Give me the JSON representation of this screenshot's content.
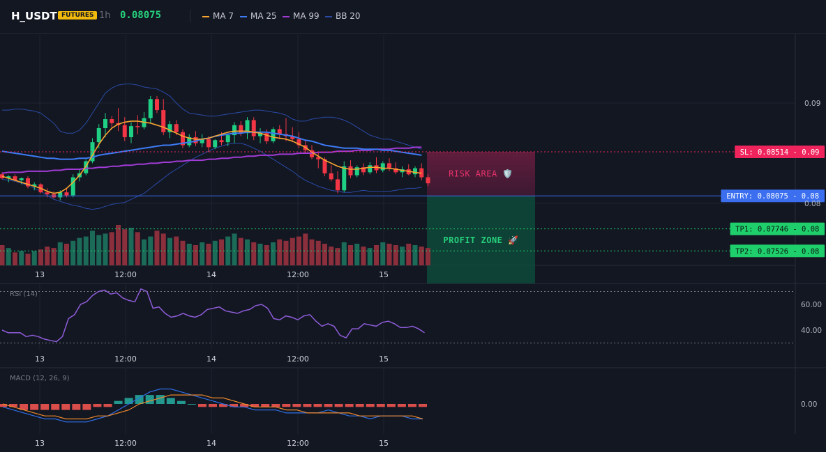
{
  "header": {
    "symbol": "H_USDT",
    "badge": "FUTURES",
    "timeframe": "1h",
    "price": "0.08075",
    "legend": [
      {
        "name": "MA 7",
        "color": "#f7a530"
      },
      {
        "name": "MA 25",
        "color": "#3d7bf5"
      },
      {
        "name": "MA 99",
        "color": "#a23bd6"
      },
      {
        "name": "BB 20",
        "color": "#2a4aa6"
      }
    ]
  },
  "chart_data": {
    "type": "candlestick",
    "x_tick_labels": [
      "13",
      "12:00",
      "14",
      "12:00",
      "15"
    ],
    "y_tick_labels": [
      "0.09",
      "0.08"
    ],
    "y_range": [
      0.0755,
      0.0935
    ],
    "colors": {
      "up": "#1fcf84",
      "down": "#f23645",
      "up_volume": "#1b6b58",
      "down_volume": "#8c2f3c"
    },
    "candles": [
      [
        0.0829,
        0.0831,
        0.0824,
        0.0825
      ],
      [
        0.0825,
        0.0828,
        0.0821,
        0.0827
      ],
      [
        0.0827,
        0.0829,
        0.0822,
        0.0823
      ],
      [
        0.0823,
        0.0826,
        0.0819,
        0.0825
      ],
      [
        0.0825,
        0.0827,
        0.0815,
        0.0817
      ],
      [
        0.0817,
        0.0821,
        0.0813,
        0.0819
      ],
      [
        0.0819,
        0.082,
        0.081,
        0.0811
      ],
      [
        0.0811,
        0.0815,
        0.0806,
        0.0809
      ],
      [
        0.0809,
        0.0812,
        0.0805,
        0.0806
      ],
      [
        0.0806,
        0.0813,
        0.0803,
        0.0811
      ],
      [
        0.0811,
        0.0815,
        0.0806,
        0.0808
      ],
      [
        0.0808,
        0.0829,
        0.0806,
        0.0826
      ],
      [
        0.0826,
        0.0834,
        0.0822,
        0.083
      ],
      [
        0.083,
        0.0844,
        0.0828,
        0.0842
      ],
      [
        0.0842,
        0.0865,
        0.084,
        0.0861
      ],
      [
        0.0861,
        0.0879,
        0.0855,
        0.0875
      ],
      [
        0.0875,
        0.089,
        0.0866,
        0.0884
      ],
      [
        0.0884,
        0.0887,
        0.0876,
        0.088
      ],
      [
        0.088,
        0.0895,
        0.0872,
        0.0878
      ],
      [
        0.0878,
        0.0886,
        0.0862,
        0.0866
      ],
      [
        0.0866,
        0.0881,
        0.086,
        0.0877
      ],
      [
        0.0877,
        0.0888,
        0.0869,
        0.0876
      ],
      [
        0.0876,
        0.0891,
        0.0874,
        0.0885
      ],
      [
        0.0885,
        0.0907,
        0.088,
        0.0904
      ],
      [
        0.0904,
        0.0907,
        0.089,
        0.0893
      ],
      [
        0.0893,
        0.0904,
        0.0868,
        0.0871
      ],
      [
        0.0871,
        0.0882,
        0.0865,
        0.0879
      ],
      [
        0.0879,
        0.0883,
        0.0868,
        0.0871
      ],
      [
        0.0871,
        0.0874,
        0.0855,
        0.0858
      ],
      [
        0.0858,
        0.0869,
        0.0856,
        0.0866
      ],
      [
        0.0866,
        0.0872,
        0.0857,
        0.086
      ],
      [
        0.086,
        0.0869,
        0.0856,
        0.0864
      ],
      [
        0.0864,
        0.0867,
        0.0851,
        0.0856
      ],
      [
        0.0856,
        0.0864,
        0.0854,
        0.0863
      ],
      [
        0.0863,
        0.0871,
        0.0858,
        0.0861
      ],
      [
        0.0861,
        0.087,
        0.0857,
        0.0868
      ],
      [
        0.0868,
        0.0881,
        0.086,
        0.0878
      ],
      [
        0.0878,
        0.0882,
        0.0867,
        0.087
      ],
      [
        0.087,
        0.0886,
        0.0864,
        0.0883
      ],
      [
        0.0883,
        0.0886,
        0.0863,
        0.0867
      ],
      [
        0.0867,
        0.0875,
        0.086,
        0.087
      ],
      [
        0.087,
        0.0874,
        0.0859,
        0.0862
      ],
      [
        0.0862,
        0.0876,
        0.086,
        0.0874
      ],
      [
        0.0874,
        0.0878,
        0.0864,
        0.0869
      ],
      [
        0.0869,
        0.0885,
        0.0862,
        0.0867
      ],
      [
        0.0867,
        0.0876,
        0.0861,
        0.0864
      ],
      [
        0.0864,
        0.0871,
        0.0855,
        0.0858
      ],
      [
        0.0858,
        0.0863,
        0.085,
        0.0853
      ],
      [
        0.0853,
        0.0858,
        0.0844,
        0.0846
      ],
      [
        0.0846,
        0.085,
        0.0835,
        0.0844
      ],
      [
        0.0844,
        0.0846,
        0.0827,
        0.083
      ],
      [
        0.083,
        0.0838,
        0.0822,
        0.0824
      ],
      [
        0.0824,
        0.0832,
        0.081,
        0.0813
      ],
      [
        0.0813,
        0.0842,
        0.0811,
        0.0837
      ],
      [
        0.0837,
        0.0843,
        0.0825,
        0.0828
      ],
      [
        0.0828,
        0.0838,
        0.0826,
        0.0836
      ],
      [
        0.0836,
        0.084,
        0.0828,
        0.0831
      ],
      [
        0.0831,
        0.0841,
        0.0829,
        0.0838
      ],
      [
        0.0838,
        0.0846,
        0.083,
        0.0833
      ],
      [
        0.0833,
        0.0842,
        0.0831,
        0.084
      ],
      [
        0.084,
        0.0845,
        0.0832,
        0.0835
      ],
      [
        0.0835,
        0.0841,
        0.0829,
        0.0831
      ],
      [
        0.0831,
        0.0837,
        0.0826,
        0.0834
      ],
      [
        0.0834,
        0.0839,
        0.0828,
        0.0829
      ],
      [
        0.0829,
        0.0837,
        0.0826,
        0.0835
      ],
      [
        0.0835,
        0.084,
        0.0823,
        0.0826
      ],
      [
        0.0826,
        0.0829,
        0.0817,
        0.082
      ]
    ],
    "volume": [
      14,
      12,
      9,
      10,
      8,
      10,
      11,
      13,
      12,
      16,
      15,
      17,
      19,
      20,
      24,
      21,
      22,
      23,
      28,
      25,
      26,
      23,
      18,
      20,
      24,
      22,
      19,
      20,
      17,
      15,
      14,
      16,
      15,
      17,
      18,
      20,
      22,
      19,
      18,
      16,
      15,
      14,
      16,
      18,
      17,
      19,
      20,
      22,
      18,
      17,
      15,
      13,
      12,
      16,
      14,
      15,
      13,
      12,
      14,
      16,
      15,
      14,
      13,
      15,
      14,
      13,
      12
    ],
    "ma7": [
      0.0827,
      0.0825,
      0.0823,
      0.0821,
      0.0819,
      0.0817,
      0.0815,
      0.0812,
      0.081,
      0.0811,
      0.0815,
      0.0821,
      0.0828,
      0.0837,
      0.0848,
      0.0859,
      0.0868,
      0.0875,
      0.0879,
      0.0881,
      0.0882,
      0.0882,
      0.0881,
      0.088,
      0.0878,
      0.0876,
      0.0873,
      0.087,
      0.0867,
      0.0865,
      0.0864,
      0.0864,
      0.0865,
      0.0867,
      0.0869,
      0.0871,
      0.0872,
      0.0872,
      0.0872,
      0.0871,
      0.087,
      0.0868,
      0.0866,
      0.0865,
      0.0864,
      0.0862,
      0.0859,
      0.0856,
      0.0851,
      0.0847,
      0.0843,
      0.084,
      0.0837,
      0.0835,
      0.0834,
      0.0834,
      0.0835,
      0.0836,
      0.0836,
      0.0835,
      0.0835,
      0.0834,
      0.0833,
      0.0832,
      0.0831,
      0.083
    ],
    "ma25": [
      0.0852,
      0.0851,
      0.085,
      0.0849,
      0.0848,
      0.0847,
      0.0846,
      0.0845,
      0.0845,
      0.0844,
      0.0844,
      0.0844,
      0.0845,
      0.0845,
      0.0846,
      0.0848,
      0.0849,
      0.085,
      0.0851,
      0.0852,
      0.0853,
      0.0854,
      0.0855,
      0.0856,
      0.0857,
      0.0858,
      0.0858,
      0.0859,
      0.086,
      0.0861,
      0.0862,
      0.0864,
      0.0865,
      0.0867,
      0.0868,
      0.0869,
      0.087,
      0.087,
      0.0871,
      0.0871,
      0.0871,
      0.0871,
      0.087,
      0.0869,
      0.0868,
      0.0867,
      0.0865,
      0.0863,
      0.0862,
      0.086,
      0.0858,
      0.0857,
      0.0856,
      0.0855,
      0.0855,
      0.0855,
      0.0854,
      0.0854,
      0.0854,
      0.0853,
      0.0853,
      0.0852,
      0.0851,
      0.085,
      0.0849,
      0.0848
    ],
    "ma99": [
      0.083,
      0.0831,
      0.0831,
      0.0831,
      0.0832,
      0.0832,
      0.0832,
      0.0832,
      0.0833,
      0.0833,
      0.0834,
      0.0834,
      0.0834,
      0.0835,
      0.0835,
      0.0836,
      0.0836,
      0.0837,
      0.0837,
      0.0838,
      0.0838,
      0.0839,
      0.0839,
      0.084,
      0.084,
      0.0841,
      0.0841,
      0.0842,
      0.0842,
      0.0843,
      0.0843,
      0.0843,
      0.0844,
      0.0844,
      0.0845,
      0.0845,
      0.0846,
      0.0846,
      0.0847,
      0.0847,
      0.0848,
      0.0848,
      0.0848,
      0.0849,
      0.0849,
      0.0849,
      0.085,
      0.085,
      0.085,
      0.0851,
      0.0851,
      0.0851,
      0.0852,
      0.0852,
      0.0852,
      0.0853,
      0.0853,
      0.0853,
      0.0854,
      0.0854,
      0.0854,
      0.0855,
      0.0855,
      0.0855,
      0.0856,
      0.0856
    ],
    "bb_upper": [
      0.0893,
      0.0893,
      0.0894,
      0.0894,
      0.0893,
      0.0892,
      0.089,
      0.0885,
      0.088,
      0.0872,
      0.087,
      0.087,
      0.0873,
      0.088,
      0.089,
      0.09,
      0.091,
      0.0915,
      0.0918,
      0.0919,
      0.0919,
      0.0918,
      0.0916,
      0.0915,
      0.0914,
      0.0911,
      0.0907,
      0.09,
      0.0894,
      0.089,
      0.0889,
      0.0888,
      0.0887,
      0.0887,
      0.0888,
      0.0889,
      0.089,
      0.0891,
      0.0892,
      0.0893,
      0.0893,
      0.0892,
      0.0891,
      0.089,
      0.0888,
      0.0884,
      0.0882,
      0.0882,
      0.0884,
      0.0885,
      0.0886,
      0.0886,
      0.0885,
      0.0883,
      0.088,
      0.0876,
      0.0872,
      0.0868,
      0.0866,
      0.0864,
      0.0864,
      0.0862,
      0.086,
      0.0858,
      0.0856,
      0.0854
    ],
    "bb_lower": [
      0.0824,
      0.0823,
      0.0822,
      0.082,
      0.0818,
      0.0815,
      0.0812,
      0.0808,
      0.0804,
      0.0802,
      0.08,
      0.0798,
      0.0797,
      0.0795,
      0.0794,
      0.0795,
      0.0797,
      0.0799,
      0.08,
      0.0801,
      0.0804,
      0.0807,
      0.081,
      0.0815,
      0.082,
      0.0825,
      0.083,
      0.0834,
      0.0838,
      0.0842,
      0.0846,
      0.0849,
      0.0852,
      0.0855,
      0.0857,
      0.0859,
      0.086,
      0.086,
      0.0858,
      0.0855,
      0.0852,
      0.0848,
      0.0844,
      0.084,
      0.0836,
      0.0832,
      0.0827,
      0.0823,
      0.082,
      0.0817,
      0.0815,
      0.0813,
      0.0812,
      0.0811,
      0.0811,
      0.0812,
      0.0813,
      0.0812,
      0.0812,
      0.0812,
      0.0812,
      0.0813,
      0.0814,
      0.0815,
      0.0815,
      0.0816
    ],
    "levels": [
      {
        "label": "SL: 0.08514 - 0.09",
        "value": 0.08514,
        "color": "#f0245c"
      },
      {
        "label": "ENTRY: 0.08075 - 0.08",
        "value": 0.08075,
        "color": "#3b6ff0"
      },
      {
        "label": "TP1: 0.07746 - 0.08",
        "value": 0.07746,
        "color": "#1fcf6c"
      },
      {
        "label": "TP2: 0.07526 - 0.08",
        "value": 0.07526,
        "color": "#1fcf6c"
      }
    ],
    "zones": {
      "risk": {
        "label": "RISK AREA 🛡️",
        "color": "#e8336b"
      },
      "profit": {
        "label": "PROFIT ZONE 🚀",
        "color": "#26d07c"
      }
    },
    "rsi": {
      "title": "RSI (14)",
      "tick_labels": [
        "60.00",
        "40.00"
      ],
      "range": [
        25,
        75
      ],
      "values": [
        40,
        38,
        38,
        38,
        35,
        36,
        35,
        33,
        32,
        31,
        35,
        49,
        52,
        60,
        62,
        67,
        70,
        71,
        68,
        69,
        65,
        63,
        62,
        72,
        70,
        57,
        58,
        53,
        50,
        51,
        53,
        51,
        50,
        52,
        56,
        57,
        58,
        55,
        54,
        53,
        55,
        56,
        59,
        60,
        57,
        49,
        48,
        51,
        50,
        48,
        51,
        52,
        47,
        43,
        45,
        43,
        36,
        34,
        41,
        41,
        45,
        44,
        43,
        46,
        47,
        45,
        42,
        42,
        43,
        41,
        38
      ]
    },
    "macd": {
      "title": "MACD (12, 26, 9)",
      "tick_labels": [
        "0.00"
      ],
      "range": [
        -0.0008,
        0.0008
      ],
      "line": [
        -0.0001,
        -0.0002,
        -0.0003,
        -0.0004,
        -0.0005,
        -0.0005,
        -0.0006,
        -0.0006,
        -0.0006,
        -0.0005,
        -0.0004,
        -0.0002,
        0.0,
        0.0002,
        0.0004,
        0.0005,
        0.0005,
        0.0004,
        0.0003,
        0.0002,
        0.0001,
        0.0,
        -0.0001,
        -0.0001,
        -0.0002,
        -0.0002,
        -0.0002,
        -0.0003,
        -0.0003,
        -0.0003,
        -0.0003,
        -0.0002,
        -0.0003,
        -0.0004,
        -0.0004,
        -0.0005,
        -0.0004,
        -0.0004,
        -0.0004,
        -0.0005,
        -0.0005
      ],
      "signal": [
        0.0,
        -0.0001,
        -0.0002,
        -0.0003,
        -0.0004,
        -0.0004,
        -0.0005,
        -0.0005,
        -0.0005,
        -0.0004,
        -0.0004,
        -0.0003,
        -0.0002,
        0.0,
        0.0001,
        0.0002,
        0.0003,
        0.0003,
        0.0003,
        0.0003,
        0.0002,
        0.0002,
        0.0001,
        0.0,
        -0.0001,
        -0.0001,
        -0.0001,
        -0.0002,
        -0.0002,
        -0.0003,
        -0.0003,
        -0.0003,
        -0.0003,
        -0.0003,
        -0.0004,
        -0.0004,
        -0.0004,
        -0.0004,
        -0.0004,
        -0.0004,
        -0.0005
      ],
      "histogram": [
        -0.0001,
        -0.0001,
        -0.0002,
        -0.0002,
        -0.0002,
        -0.0002,
        -0.0002,
        -0.0002,
        -0.0002,
        -0.0001,
        -0.0001,
        0.0001,
        0.0002,
        0.0003,
        0.0003,
        0.0003,
        0.0002,
        0.0001,
        0.0,
        -0.0001,
        -0.0001,
        -0.0001,
        -0.0001,
        -0.0001,
        -0.0001,
        -0.0001,
        -0.0001,
        -0.0001,
        -0.0001,
        -0.0001,
        -0.0001,
        -0.0001,
        -0.0001,
        -0.0001,
        -0.0001,
        -0.0001,
        -0.0001,
        -0.0001,
        -0.0001,
        -0.0001,
        -0.0001
      ]
    }
  }
}
